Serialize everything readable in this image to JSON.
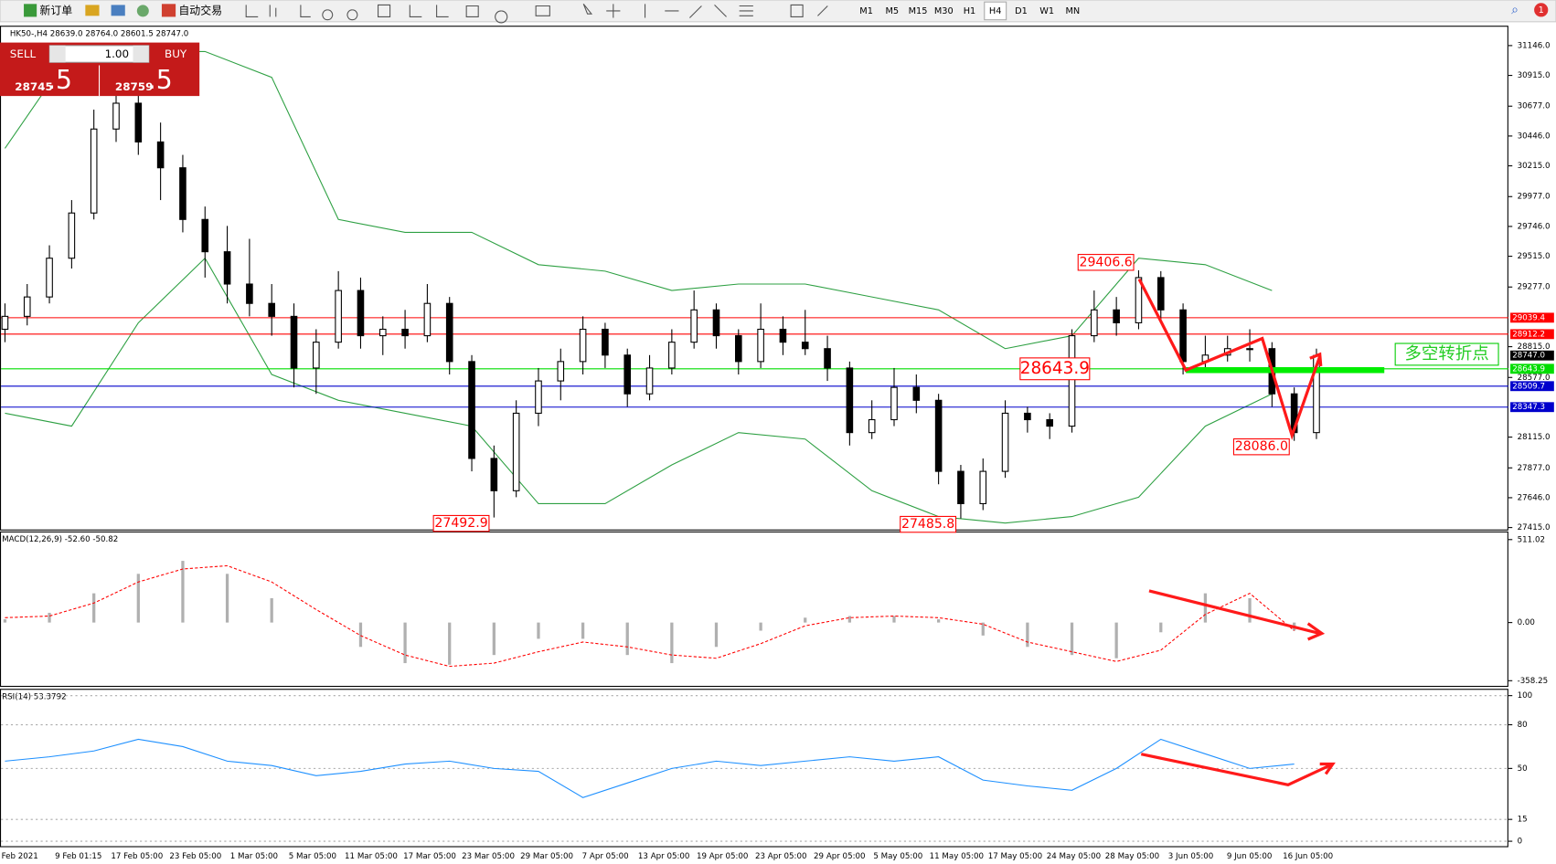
{
  "toolbar": {
    "new_order": "新订单",
    "auto_trading": "自动交易",
    "timeframes": [
      "M1",
      "M5",
      "M15",
      "M30",
      "H1",
      "H4",
      "D1",
      "W1",
      "MN"
    ],
    "notifications": "1"
  },
  "trade_panel": {
    "sell": "SELL",
    "buy": "BUY",
    "lots": "1.00",
    "sell_price": "28745",
    "sell_fraction": ".5",
    "buy_price": "28759",
    "buy_fraction": ".5"
  },
  "chart_data": [
    {
      "type": "candlestick",
      "title": "HK50-,H4  28639.0 28764.0 28601.5 28747.0",
      "ylim": [
        27400,
        31292
      ],
      "yticks": [
        {
          "value": 31146.0,
          "label": "31146.0"
        },
        {
          "value": 30915.0,
          "label": "30915.0"
        },
        {
          "value": 30677.0,
          "label": "30677.0"
        },
        {
          "value": 30446.0,
          "label": "30446.0"
        },
        {
          "value": 30215.0,
          "label": "30215.0"
        },
        {
          "value": 29977.0,
          "label": "29977.0"
        },
        {
          "value": 29746.0,
          "label": "29746.0"
        },
        {
          "value": 29515.0,
          "label": "29515.0"
        },
        {
          "value": 29277.0,
          "label": "29277.0"
        },
        {
          "value": 28815.0,
          "label": "28815.0"
        },
        {
          "value": 28577.0,
          "label": "28577.0"
        },
        {
          "value": 28115.0,
          "label": "28115.0"
        },
        {
          "value": 27877.0,
          "label": "27877.0"
        },
        {
          "value": 27646.0,
          "label": "27646.0"
        },
        {
          "value": 27415.0,
          "label": "27415.0"
        }
      ],
      "categories": [
        "Feb 2021",
        "9 Feb 01:15",
        "17 Feb 05:00",
        "23 Feb 05:00",
        "1 Mar 05:00",
        "5 Mar 05:00",
        "11 Mar 05:00",
        "17 Mar 05:00",
        "23 Mar 05:00",
        "29 Mar 05:00",
        "7 Apr 05:00",
        "13 Apr 05:00",
        "19 Apr 05:00",
        "23 Apr 05:00",
        "29 Apr 05:00",
        "5 May 05:00",
        "11 May 05:00",
        "17 May 05:00",
        "24 May 05:00",
        "28 May 05:00",
        "3 Jun 05:00",
        "9 Jun 05:00",
        "16 Jun 05:00"
      ],
      "candles": [
        [
          28950,
          29150,
          28850,
          29050
        ],
        [
          29050,
          29300,
          28980,
          29200
        ],
        [
          29200,
          29600,
          29150,
          29500
        ],
        [
          29500,
          29950,
          29420,
          29850
        ],
        [
          29850,
          30650,
          29800,
          30500
        ],
        [
          30500,
          30850,
          30400,
          30700
        ],
        [
          30700,
          30800,
          30300,
          30400
        ],
        [
          30400,
          30550,
          29950,
          30200
        ],
        [
          30200,
          30300,
          29700,
          29800
        ],
        [
          29800,
          29900,
          29350,
          29550
        ],
        [
          29550,
          29750,
          29150,
          29300
        ],
        [
          29300,
          29650,
          29050,
          29150
        ],
        [
          29150,
          29300,
          28900,
          29050
        ],
        [
          29050,
          29150,
          28500,
          28650
        ],
        [
          28650,
          28950,
          28450,
          28850
        ],
        [
          28850,
          29400,
          28800,
          29250
        ],
        [
          29250,
          29350,
          28800,
          28900
        ],
        [
          28900,
          29050,
          28750,
          28950
        ],
        [
          28950,
          29100,
          28800,
          28900
        ],
        [
          28900,
          29300,
          28850,
          29150
        ],
        [
          29150,
          29200,
          28600,
          28700
        ],
        [
          28700,
          28750,
          27850,
          27950
        ],
        [
          27950,
          28050,
          27492.9,
          27700
        ],
        [
          27700,
          28400,
          27650,
          28300
        ],
        [
          28300,
          28650,
          28200,
          28550
        ],
        [
          28550,
          28800,
          28400,
          28700
        ],
        [
          28700,
          29050,
          28600,
          28950
        ],
        [
          28950,
          29000,
          28650,
          28750
        ],
        [
          28750,
          28800,
          28350,
          28450
        ],
        [
          28450,
          28750,
          28400,
          28650
        ],
        [
          28650,
          28950,
          28600,
          28850
        ],
        [
          28850,
          29250,
          28800,
          29100
        ],
        [
          29100,
          29150,
          28800,
          28900
        ],
        [
          28900,
          28950,
          28600,
          28700
        ],
        [
          28700,
          29150,
          28650,
          28950
        ],
        [
          28950,
          29050,
          28750,
          28850
        ],
        [
          28850,
          29100,
          28750,
          28800
        ],
        [
          28800,
          28900,
          28550,
          28650
        ],
        [
          28650,
          28700,
          28050,
          28150
        ],
        [
          28150,
          28400,
          28100,
          28250
        ],
        [
          28250,
          28650,
          28200,
          28500
        ],
        [
          28500,
          28600,
          28300,
          28400
        ],
        [
          28400,
          28450,
          27750,
          27850
        ],
        [
          27850,
          27900,
          27485.8,
          27600
        ],
        [
          27600,
          27950,
          27550,
          27850
        ],
        [
          27850,
          28400,
          27800,
          28300
        ],
        [
          28300,
          28350,
          28150,
          28250
        ],
        [
          28250,
          28300,
          28100,
          28200
        ],
        [
          28200,
          28950,
          28150,
          28900
        ],
        [
          28900,
          29250,
          28850,
          29100
        ],
        [
          29100,
          29200,
          28900,
          29000
        ],
        [
          29000,
          29406.6,
          28950,
          29350
        ],
        [
          29350,
          29400,
          29000,
          29100
        ],
        [
          29100,
          29150,
          28600,
          28700
        ],
        [
          28700,
          28900,
          28650,
          28750
        ],
        [
          28750,
          28900,
          28700,
          28800
        ],
        [
          28800,
          28950,
          28700,
          28800
        ],
        [
          28800,
          28850,
          28350,
          28450
        ],
        [
          28450,
          28500,
          28086.0,
          28150
        ],
        [
          28150,
          28800,
          28100,
          28747
        ]
      ],
      "upper_band": [
        30350,
        31100,
        31100,
        31100,
        30900,
        29800,
        29700,
        29700,
        29450,
        29400,
        29250,
        29300,
        29300,
        29200,
        29100,
        28800,
        28900,
        29500,
        29450,
        29250
      ],
      "lower_band": [
        28300,
        28200,
        29000,
        29500,
        28600,
        28400,
        28300,
        28200,
        27600,
        27600,
        27900,
        28150,
        28100,
        27700,
        27500,
        27450,
        27500,
        27650,
        28200,
        28450
      ],
      "band_color": "#2ea043",
      "levels": [
        {
          "value": 29039.4,
          "color": "#ff0000"
        },
        {
          "value": 28912.2,
          "color": "#ff0000"
        },
        {
          "value": 28643.9,
          "color": "#00dd00"
        },
        {
          "value": 28509.7,
          "color": "#0000cc"
        },
        {
          "value": 28347.3,
          "color": "#0000cc"
        },
        {
          "value": 28747.0,
          "label": "28747.0",
          "color": "#000000"
        }
      ],
      "annotations": [
        {
          "value": 29406.6
        },
        {
          "value": 27492.9
        },
        {
          "value": 27485.8
        },
        {
          "value": 28086.0,
          "label": "28086.0"
        },
        {
          "value": 28643.9
        }
      ],
      "note": "多空转折点"
    },
    {
      "type": "macd",
      "title": "MACD(12,26,9) -52.60 -50.82",
      "ylim": [
        -390,
        555
      ],
      "yticks": [
        511.02,
        {
          "value": 0,
          "label": "0.00"
        },
        -358.25
      ],
      "values": [
        20,
        60,
        180,
        300,
        380,
        300,
        150,
        0,
        -150,
        -250,
        -260,
        -200,
        -100,
        -100,
        -200,
        -250,
        -150,
        -50,
        30,
        40,
        40,
        20,
        -80,
        -150,
        -200,
        -220,
        -60,
        180,
        150,
        -50
      ],
      "signal": [
        30,
        40,
        120,
        250,
        330,
        350,
        250,
        80,
        -80,
        -200,
        -270,
        -250,
        -180,
        -120,
        -150,
        -200,
        -220,
        -130,
        -20,
        30,
        40,
        30,
        -10,
        -120,
        -180,
        -240,
        -170,
        50,
        180,
        -50
      ],
      "color": "#b0b0b0",
      "signal_color": "#ff0000"
    },
    {
      "type": "line",
      "title": "RSI(14) 53.3792",
      "ylim": [
        -3.4,
        104
      ],
      "yticks": [
        100,
        80,
        50,
        15,
        0
      ],
      "grid": true,
      "values": [
        55,
        58,
        62,
        70,
        65,
        55,
        52,
        45,
        48,
        53,
        55,
        50,
        48,
        30,
        40,
        50,
        55,
        52,
        55,
        58,
        55,
        58,
        42,
        38,
        35,
        50,
        70,
        60,
        50,
        53
      ],
      "color": "#1e90ff"
    }
  ]
}
